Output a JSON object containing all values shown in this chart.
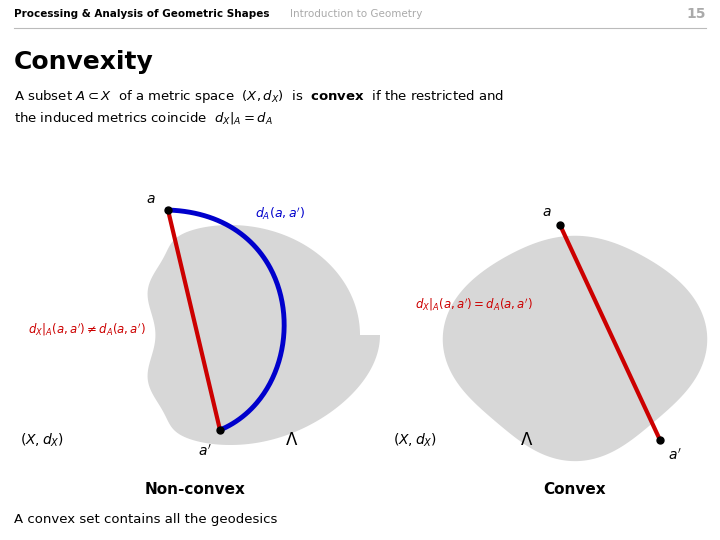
{
  "white_bg": "#ffffff",
  "title_left": "Processing & Analysis of Geometric Shapes",
  "title_right": "Introduction to Geometry",
  "page_num": "15",
  "section_title": "Convexity",
  "bottom_text": "A convex set contains all the geodesics",
  "label_nonconvex": "Non-convex",
  "label_convex": "Convex",
  "gray_blob": "#d0d0d0",
  "red_color": "#cc0000",
  "blue_color": "#0000cc",
  "figsize": [
    7.2,
    5.4
  ],
  "dpi": 100
}
